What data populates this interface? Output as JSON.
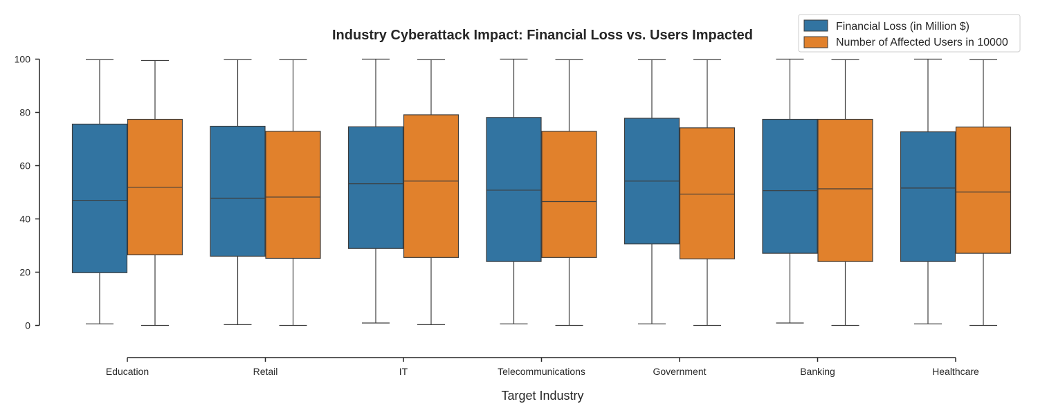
{
  "chart_data": {
    "type": "boxplot",
    "title": "Industry Cyberattack Impact: Financial Loss vs. Users Impacted",
    "xlabel": "Target Industry",
    "ylabel": "",
    "ylim": [
      -12,
      103
    ],
    "yticks": [
      0,
      20,
      40,
      60,
      80,
      100
    ],
    "categories": [
      "Education",
      "Retail",
      "IT",
      "Telecommunications",
      "Government",
      "Banking",
      "Healthcare"
    ],
    "legend_position": "top-right",
    "series": [
      {
        "name": "Financial Loss (in Million $)",
        "color": "#3274a1",
        "boxes": [
          {
            "min": 0.6,
            "q1": 19.8,
            "median": 47.0,
            "q3": 75.6,
            "max": 99.8
          },
          {
            "min": 0.3,
            "q1": 26.0,
            "median": 47.8,
            "q3": 74.8,
            "max": 99.8
          },
          {
            "min": 0.9,
            "q1": 28.9,
            "median": 53.2,
            "q3": 74.6,
            "max": 100.0
          },
          {
            "min": 0.6,
            "q1": 24.0,
            "median": 50.8,
            "q3": 78.1,
            "max": 100.0
          },
          {
            "min": 0.6,
            "q1": 30.6,
            "median": 54.2,
            "q3": 77.8,
            "max": 99.8
          },
          {
            "min": 0.9,
            "q1": 27.1,
            "median": 50.6,
            "q3": 77.4,
            "max": 100.0
          },
          {
            "min": 0.6,
            "q1": 24.0,
            "median": 51.6,
            "q3": 72.7,
            "max": 100.0
          }
        ]
      },
      {
        "name": "Number of Affected Users in 10000",
        "color": "#e1812c",
        "boxes": [
          {
            "min": 0.0,
            "q1": 26.5,
            "median": 51.9,
            "q3": 77.4,
            "max": 99.5
          },
          {
            "min": 0.0,
            "q1": 25.2,
            "median": 48.2,
            "q3": 72.9,
            "max": 99.8
          },
          {
            "min": 0.3,
            "q1": 25.5,
            "median": 54.2,
            "q3": 79.1,
            "max": 99.8
          },
          {
            "min": 0.0,
            "q1": 25.5,
            "median": 46.5,
            "q3": 72.9,
            "max": 99.8
          },
          {
            "min": 0.0,
            "q1": 25.0,
            "median": 49.3,
            "q3": 74.2,
            "max": 99.8
          },
          {
            "min": 0.0,
            "q1": 24.0,
            "median": 51.3,
            "q3": 77.4,
            "max": 99.8
          },
          {
            "min": 0.0,
            "q1": 27.1,
            "median": 50.1,
            "q3": 74.5,
            "max": 99.8
          }
        ]
      }
    ]
  }
}
